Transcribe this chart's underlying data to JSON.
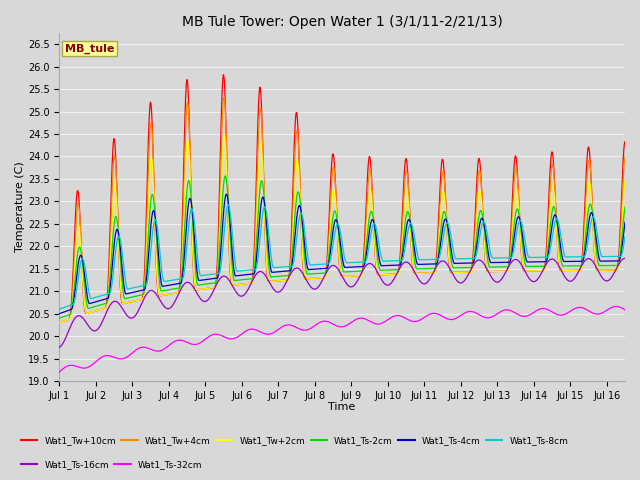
{
  "title": "MB Tule Tower: Open Water 1 (3/1/11-2/21/13)",
  "xlabel": "Time",
  "ylabel": "Temperature (C)",
  "ylim": [
    19.0,
    26.75
  ],
  "yticks": [
    19.0,
    19.5,
    20.0,
    20.5,
    21.0,
    21.5,
    22.0,
    22.5,
    23.0,
    23.5,
    24.0,
    24.5,
    25.0,
    25.5,
    26.0,
    26.5
  ],
  "xtick_labels": [
    "Jul 1",
    "Jul 2",
    "Jul 3",
    "Jul 4",
    "Jul 5",
    "Jul 6",
    "Jul 7",
    "Jul 8",
    "Jul 9",
    "Jul 10",
    "Jul 11",
    "Jul 12",
    "Jul 13",
    "Jul 14",
    "Jul 15",
    "Jul 16"
  ],
  "plot_bg_color": "#d8d8d8",
  "grid_color": "#f0f0f0",
  "fig_bg_color": "#d8d8d8",
  "series": [
    {
      "label": "Wat1_Tw+10cm",
      "color": "#ff0000"
    },
    {
      "label": "Wat1_Tw+4cm",
      "color": "#ff8800"
    },
    {
      "label": "Wat1_Tw+2cm",
      "color": "#ffff00"
    },
    {
      "label": "Wat1_Ts-2cm",
      "color": "#00dd00"
    },
    {
      "label": "Wat1_Ts-4cm",
      "color": "#0000cc"
    },
    {
      "label": "Wat1_Ts-8cm",
      "color": "#00cccc"
    },
    {
      "label": "Wat1_Ts-16cm",
      "color": "#9900cc"
    },
    {
      "label": "Wat1_Ts-32cm",
      "color": "#ff00ff"
    }
  ],
  "annotation_text": "MB_tule",
  "annotation_color": "#8b0000",
  "annotation_bg": "#ffff99",
  "annotation_border": "#aaaa44",
  "lw_sharp": 0.9,
  "lw_smooth": 1.0
}
